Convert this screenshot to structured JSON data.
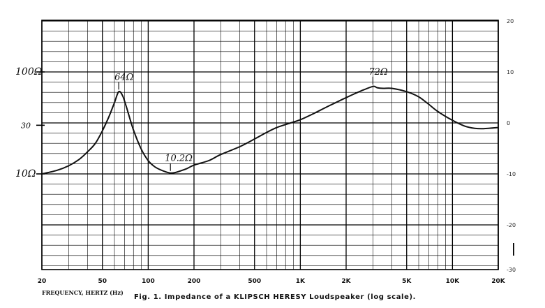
{
  "chart_data": {
    "type": "line",
    "title": "Fig. 1.  Impedance of a KLIPSCH HERESY Loudspeaker (log scale).",
    "xlabel": "FREQUENCY, HERTZ (Hz)",
    "x_scale": "log",
    "xlim": [
      20,
      20000
    ],
    "x_ticks": [
      {
        "value": 20,
        "label": "20"
      },
      {
        "value": 50,
        "label": "50"
      },
      {
        "value": 100,
        "label": "100"
      },
      {
        "value": 200,
        "label": "200"
      },
      {
        "value": 500,
        "label": "500"
      },
      {
        "value": 1000,
        "label": "1K"
      },
      {
        "value": 2000,
        "label": "2K"
      },
      {
        "value": 5000,
        "label": "5K"
      },
      {
        "value": 10000,
        "label": "10K"
      },
      {
        "value": 20000,
        "label": "20K"
      }
    ],
    "y_left_scale": "log",
    "y_left_ticks": [
      {
        "value": 100,
        "label": "100Ω"
      },
      {
        "value": 30,
        "label": "30"
      },
      {
        "value": 10,
        "label": "10Ω"
      }
    ],
    "y_right_ticks": [
      {
        "value": 20,
        "label": "20"
      },
      {
        "value": 10,
        "label": "10"
      },
      {
        "value": 0,
        "label": "0"
      },
      {
        "value": -10,
        "label": "-10"
      },
      {
        "value": -20,
        "label": "-20"
      },
      {
        "value": -30,
        "label": "-30"
      }
    ],
    "grid": true,
    "series": [
      {
        "x": [
          20,
          25,
          30,
          35,
          40,
          45,
          50,
          55,
          60,
          64,
          68,
          72,
          80,
          90,
          100,
          110,
          120,
          130,
          140,
          150,
          160,
          180,
          200,
          250,
          300,
          400,
          500,
          600,
          700,
          800,
          1000,
          1200,
          1500,
          2000,
          2500,
          3000,
          3200,
          3500,
          4000,
          5000,
          6000,
          7000,
          8000,
          10000,
          12000,
          14000,
          16000,
          20000
        ],
        "y": [
          10.0,
          10.8,
          12.0,
          13.8,
          16.5,
          20.0,
          26.5,
          36.0,
          50.0,
          64.0,
          58.0,
          45.0,
          27.0,
          17.5,
          13.5,
          11.8,
          11.0,
          10.5,
          10.2,
          10.3,
          10.6,
          11.3,
          12.2,
          13.5,
          15.5,
          18.5,
          22.0,
          25.5,
          28.5,
          30.5,
          34.0,
          38.5,
          45.5,
          56.0,
          65.0,
          72.0,
          70.0,
          69.0,
          69.0,
          64.0,
          57.0,
          48.0,
          41.0,
          33.5,
          29.5,
          28.0,
          27.8,
          28.5
        ]
      }
    ],
    "annotations": [
      {
        "text": "64Ω",
        "x": 64,
        "y": 64
      },
      {
        "text": "10.2Ω",
        "x": 140,
        "y": 10.2
      },
      {
        "text": "72Ω",
        "x": 3000,
        "y": 72
      }
    ]
  }
}
